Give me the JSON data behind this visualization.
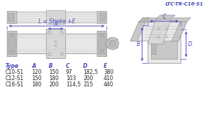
{
  "title": "LTC-TR-C16-S1",
  "bg_color": "#ffffff",
  "table_header": [
    "Type",
    "A",
    "B",
    "C",
    "D",
    "E"
  ],
  "table_rows": [
    [
      "C10-S1",
      "120",
      "150",
      "97",
      "182,5",
      "380"
    ],
    [
      "C12-S1",
      "150",
      "180",
      "103",
      "200",
      "410"
    ],
    [
      "C16-S1",
      "180",
      "200",
      "114,5",
      "215",
      "440"
    ]
  ],
  "dim_label": "L = Stroke +E",
  "dim_A": "A",
  "dim_B": "B",
  "dim_C": "C",
  "dim_D": "D",
  "line_color": "#4444bb",
  "gray1": "#d8d8d8",
  "gray2": "#c8c8c8",
  "gray3": "#b8b8b8",
  "gray4": "#e8e8e8",
  "edge_color": "#999999",
  "text_color": "#4444bb"
}
